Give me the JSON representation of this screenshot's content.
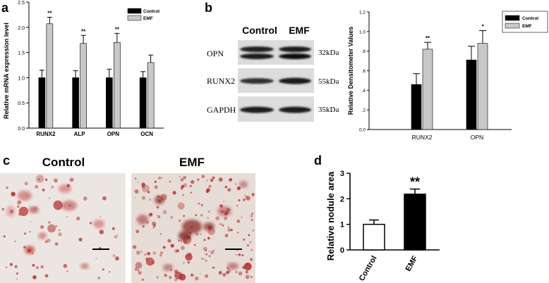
{
  "panels": {
    "a": "a",
    "b": "b",
    "c": "c",
    "d": "d"
  },
  "colors": {
    "control": "#000000",
    "emf": "#c8c8c8",
    "stain": "#b8302a",
    "background": "#ffffff"
  },
  "chart_data": [
    {
      "id": "a",
      "type": "bar",
      "ylabel": "Relative mRNA expression level",
      "xlabel": "",
      "ylim": [
        0,
        2.5
      ],
      "yticks": [
        "0.0",
        "0.5",
        "1.0",
        "1.5",
        "2.0",
        "2.5"
      ],
      "categories": [
        "RUNX2",
        "ALP",
        "OPN",
        "OCN"
      ],
      "series": [
        {
          "name": "Control",
          "values": [
            1.0,
            1.0,
            1.0,
            1.0
          ],
          "errors": [
            0.15,
            0.14,
            0.17,
            0.12
          ]
        },
        {
          "name": "EMF",
          "values": [
            2.07,
            1.68,
            1.7,
            1.3
          ],
          "errors": [
            0.13,
            0.16,
            0.18,
            0.15
          ]
        }
      ],
      "annotations": [
        "**",
        "**",
        "**",
        ""
      ],
      "legend": "top-right"
    },
    {
      "id": "b",
      "type": "bar",
      "ylabel": "Relative Densitometer Values",
      "xlabel": "",
      "ylim": [
        0,
        1.2
      ],
      "yticks": [
        "0.0",
        ".2",
        ".4",
        ".6",
        ".8",
        "1.0",
        "1.2"
      ],
      "categories": [
        "RUNX2",
        "OPN"
      ],
      "series": [
        {
          "name": "Control",
          "values": [
            0.46,
            0.71
          ],
          "errors": [
            0.11,
            0.14
          ]
        },
        {
          "name": "EMF",
          "values": [
            0.82,
            0.88
          ],
          "errors": [
            0.07,
            0.13
          ]
        }
      ],
      "annotations": [
        "**",
        "*"
      ],
      "legend": "top-right"
    },
    {
      "id": "d",
      "type": "bar",
      "ylabel": "Relative nodule area",
      "xlabel": "",
      "ylim": [
        0,
        3
      ],
      "yticks": [
        "0",
        "1",
        "2",
        "3"
      ],
      "categories": [
        "Control",
        "EMF"
      ],
      "values": [
        1.0,
        2.18
      ],
      "errors": [
        0.17,
        0.2
      ],
      "annotations": [
        "",
        "**"
      ]
    }
  ],
  "western_blot": {
    "columns": [
      "Control",
      "EMF"
    ],
    "rows": [
      {
        "label": "OPN",
        "size": "32kDa"
      },
      {
        "label": "RUNX2",
        "size": "55kDa"
      },
      {
        "label": "GAPDH",
        "size": "35kDa"
      }
    ]
  },
  "micrographs": {
    "left_title": "Control",
    "right_title": "EMF"
  }
}
